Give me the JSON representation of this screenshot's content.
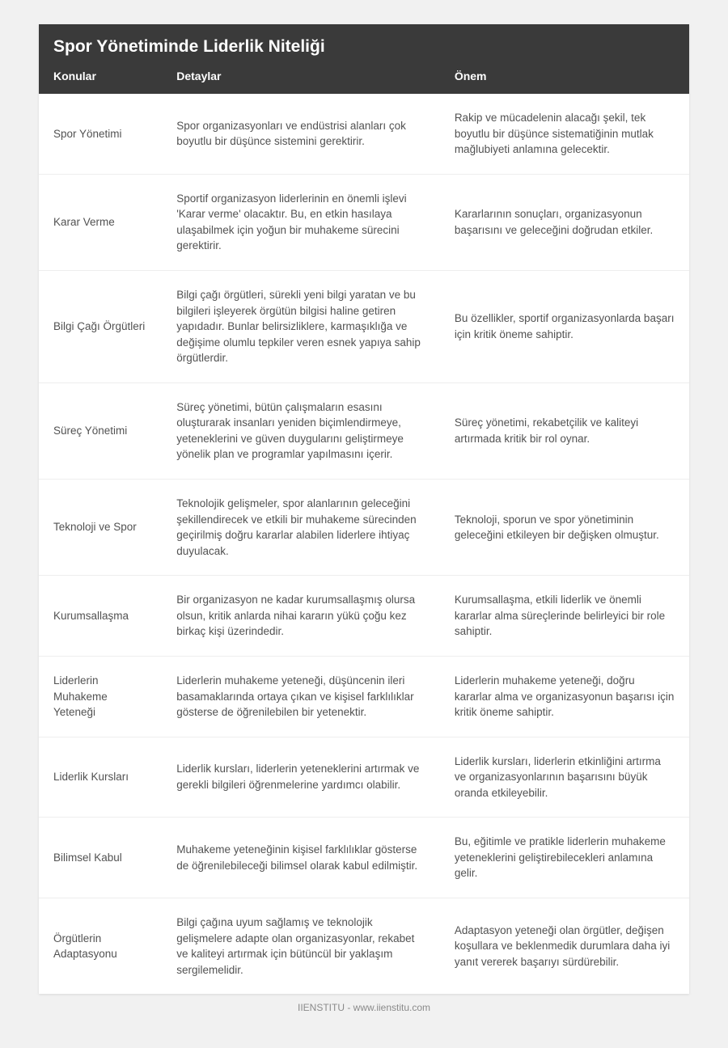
{
  "title": "Spor Yönetiminde Liderlik Niteliği",
  "columns": [
    "Konular",
    "Detaylar",
    "Önem"
  ],
  "rows": [
    {
      "topic": "Spor Yönetimi",
      "detail": "Spor organizasyonları ve endüstrisi alanları çok boyutlu bir düşünce sistemini gerektirir.",
      "importance": "Rakip ve mücadelenin alacağı şekil, tek boyutlu bir düşünce sistematiğinin mutlak mağlubiyeti anlamına gelecektir."
    },
    {
      "topic": "Karar Verme",
      "detail": "Sportif organizasyon liderlerinin en önemli işlevi 'Karar verme' olacaktır. Bu, en etkin hasılaya ulaşabilmek için yoğun bir muhakeme sürecini gerektirir.",
      "importance": "Kararlarının sonuçları, organizasyonun başarısını ve geleceğini doğrudan etkiler."
    },
    {
      "topic": "Bilgi Çağı Örgütleri",
      "detail": "Bilgi çağı örgütleri, sürekli yeni bilgi yaratan ve bu bilgileri işleyerek örgütün bilgisi haline getiren yapıdadır. Bunlar belirsizliklere, karmaşıklığa ve değişime olumlu tepkiler veren esnek yapıya sahip örgütlerdir.",
      "importance": "Bu özellikler, sportif organizasyonlarda başarı için kritik öneme sahiptir."
    },
    {
      "topic": "Süreç Yönetimi",
      "detail": "Süreç yönetimi, bütün çalışmaların esasını oluşturarak insanları yeniden biçimlendirmeye, yeteneklerini ve güven duygularını geliştirmeye yönelik plan ve programlar yapılmasını içerir.",
      "importance": "Süreç yönetimi, rekabetçilik ve kaliteyi artırmada kritik bir rol oynar."
    },
    {
      "topic": "Teknoloji ve Spor",
      "detail": "Teknolojik gelişmeler, spor alanlarının geleceğini şekillendirecek ve etkili bir muhakeme sürecinden geçirilmiş doğru kararlar alabilen liderlere ihtiyaç duyulacak.",
      "importance": "Teknoloji, sporun ve spor yönetiminin geleceğini etkileyen bir değişken olmuştur."
    },
    {
      "topic": "Kurumsallaşma",
      "detail": "Bir organizasyon ne kadar kurumsallaşmış olursa olsun, kritik anlarda nihai kararın yükü çoğu kez birkaç kişi üzerindedir.",
      "importance": "Kurumsallaşma, etkili liderlik ve önemli kararlar alma süreçlerinde belirleyici bir role sahiptir."
    },
    {
      "topic": "Liderlerin Muhakeme Yeteneği",
      "detail": "Liderlerin muhakeme yeteneği, düşüncenin ileri basamaklarında ortaya çıkan ve kişisel farklılıklar gösterse de öğrenilebilen bir yetenektir.",
      "importance": "Liderlerin muhakeme yeteneği, doğru kararlar alma ve organizasyonun başarısı için kritik öneme sahiptir."
    },
    {
      "topic": "Liderlik Kursları",
      "detail": "Liderlik kursları, liderlerin yeteneklerini artırmak ve gerekli bilgileri öğrenmelerine yardımcı olabilir.",
      "importance": "Liderlik kursları, liderlerin etkinliğini artırma ve organizasyonlarının başarısını büyük oranda etkileyebilir."
    },
    {
      "topic": "Bilimsel Kabul",
      "detail": "Muhakeme yeteneğinin kişisel farklılıklar gösterse de öğrenilebileceği bilimsel olarak kabul edilmiştir.",
      "importance": "Bu, eğitimle ve pratikle liderlerin muhakeme yeteneklerini geliştirebilecekleri anlamına gelir."
    },
    {
      "topic": "Örgütlerin Adaptasyonu",
      "detail": "Bilgi çağına uyum sağlamış ve teknolojik gelişmelere adapte olan organizasyonlar, rekabet ve kaliteyi artırmak için bütüncül bir yaklaşım sergilemelidir.",
      "importance": "Adaptasyon yeteneği olan örgütler, değişen koşullara ve beklenmedik durumlara daha iyi yanıt vererek başarıyı sürdürebilir."
    }
  ],
  "footer": "IIENSTITU - www.iienstitu.com",
  "colors": {
    "page_bg": "#f1f1f1",
    "table_bg": "#ffffff",
    "header_bg": "#3a3a3a",
    "header_text": "#ffffff",
    "body_text": "#525252",
    "border": "#eeeeee",
    "footer_text": "#8a8a8a"
  }
}
